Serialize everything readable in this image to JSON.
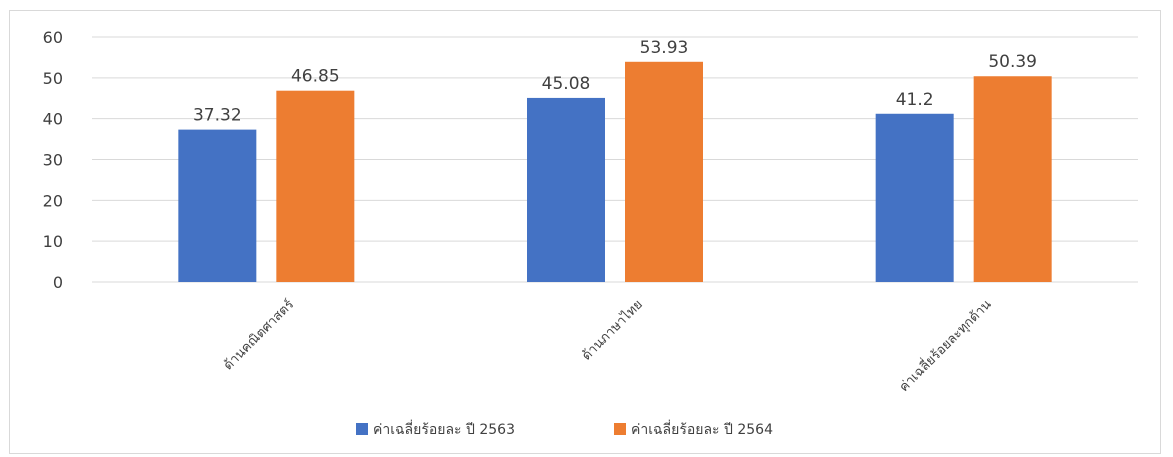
{
  "chart_data": {
    "type": "bar",
    "title": "",
    "xlabel": "",
    "ylabel": "",
    "categories": [
      "ด้านคณิตศาสตร์",
      "ด้านภาษาไทย",
      "ค่าเฉลี่ยร้อยละทุกด้าน"
    ],
    "series": [
      {
        "name": "ค่าเฉลี่ยร้อยละ ปี 2563",
        "color": "#4472c4",
        "values": [
          37.32,
          45.08,
          41.2
        ],
        "labels": [
          "37.32",
          "45.08",
          "41.2"
        ]
      },
      {
        "name": "ค่าเฉลี่ยร้อยละ ปี 2564",
        "color": "#ed7d31",
        "values": [
          46.85,
          53.93,
          50.39
        ],
        "labels": [
          "46.85",
          "53.93",
          "50.39"
        ]
      }
    ],
    "ylim": [
      0,
      60
    ],
    "yticks": [
      "0",
      "10",
      "20",
      "30",
      "40",
      "50",
      "60"
    ],
    "grid": true,
    "gridColor": "#d9d9d9",
    "legend": "bottom-center"
  }
}
